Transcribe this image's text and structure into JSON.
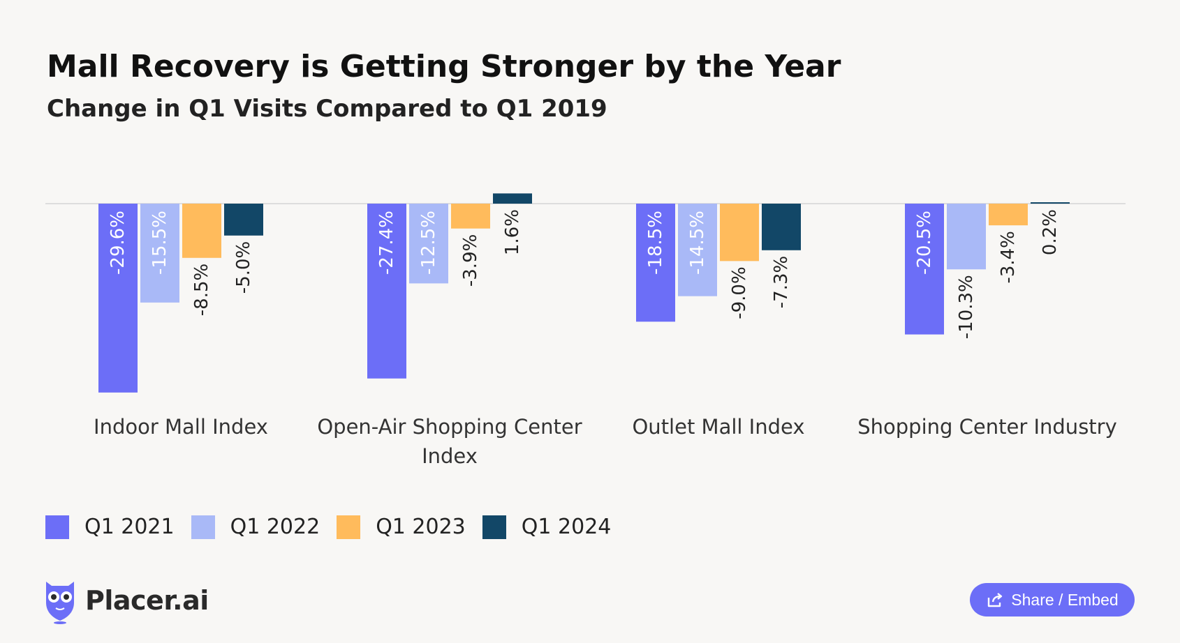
{
  "chart_data": {
    "type": "bar",
    "title": "Mall Recovery is Getting Stronger by the Year",
    "subtitle": "Change in Q1 Visits Compared to Q1 2019",
    "categories": [
      [
        "Indoor Mall Index"
      ],
      [
        "Open-Air Shopping Center",
        "Index"
      ],
      [
        "Outlet Mall Index"
      ],
      [
        "Shopping Center Industry"
      ]
    ],
    "series": [
      {
        "name": "Q1 2021",
        "color": "#6c6ef7",
        "values": [
          -29.6,
          -27.4,
          -18.5,
          -20.5
        ],
        "labels": [
          "-29.6%",
          "-27.4%",
          "-18.5%",
          "-20.5%"
        ]
      },
      {
        "name": "Q1 2022",
        "color": "#a9b9f7",
        "values": [
          -15.5,
          -12.5,
          -14.5,
          -10.3
        ],
        "labels": [
          "-15.5%",
          "-12.5%",
          "-14.5%",
          "-10.3%"
        ]
      },
      {
        "name": "Q1 2023",
        "color": "#ffbb5c",
        "values": [
          -8.5,
          -3.9,
          -9.0,
          -3.4
        ],
        "labels": [
          "-8.5%",
          "-3.9%",
          "-9.0%",
          "-3.4%"
        ]
      },
      {
        "name": "Q1 2024",
        "color": "#124767",
        "values": [
          -5.0,
          1.6,
          -7.3,
          0.2
        ],
        "labels": [
          "-5.0%",
          "1.6%",
          "-7.3%",
          "0.2%"
        ]
      }
    ],
    "xlabel": "",
    "ylabel": "",
    "grid": false,
    "legend_placement": "bottom-left"
  },
  "branding": {
    "logo_text": "Placer.ai",
    "brand_color": "#6c6ef7"
  },
  "share": {
    "label": "Share / Embed",
    "icon": "share-icon"
  }
}
